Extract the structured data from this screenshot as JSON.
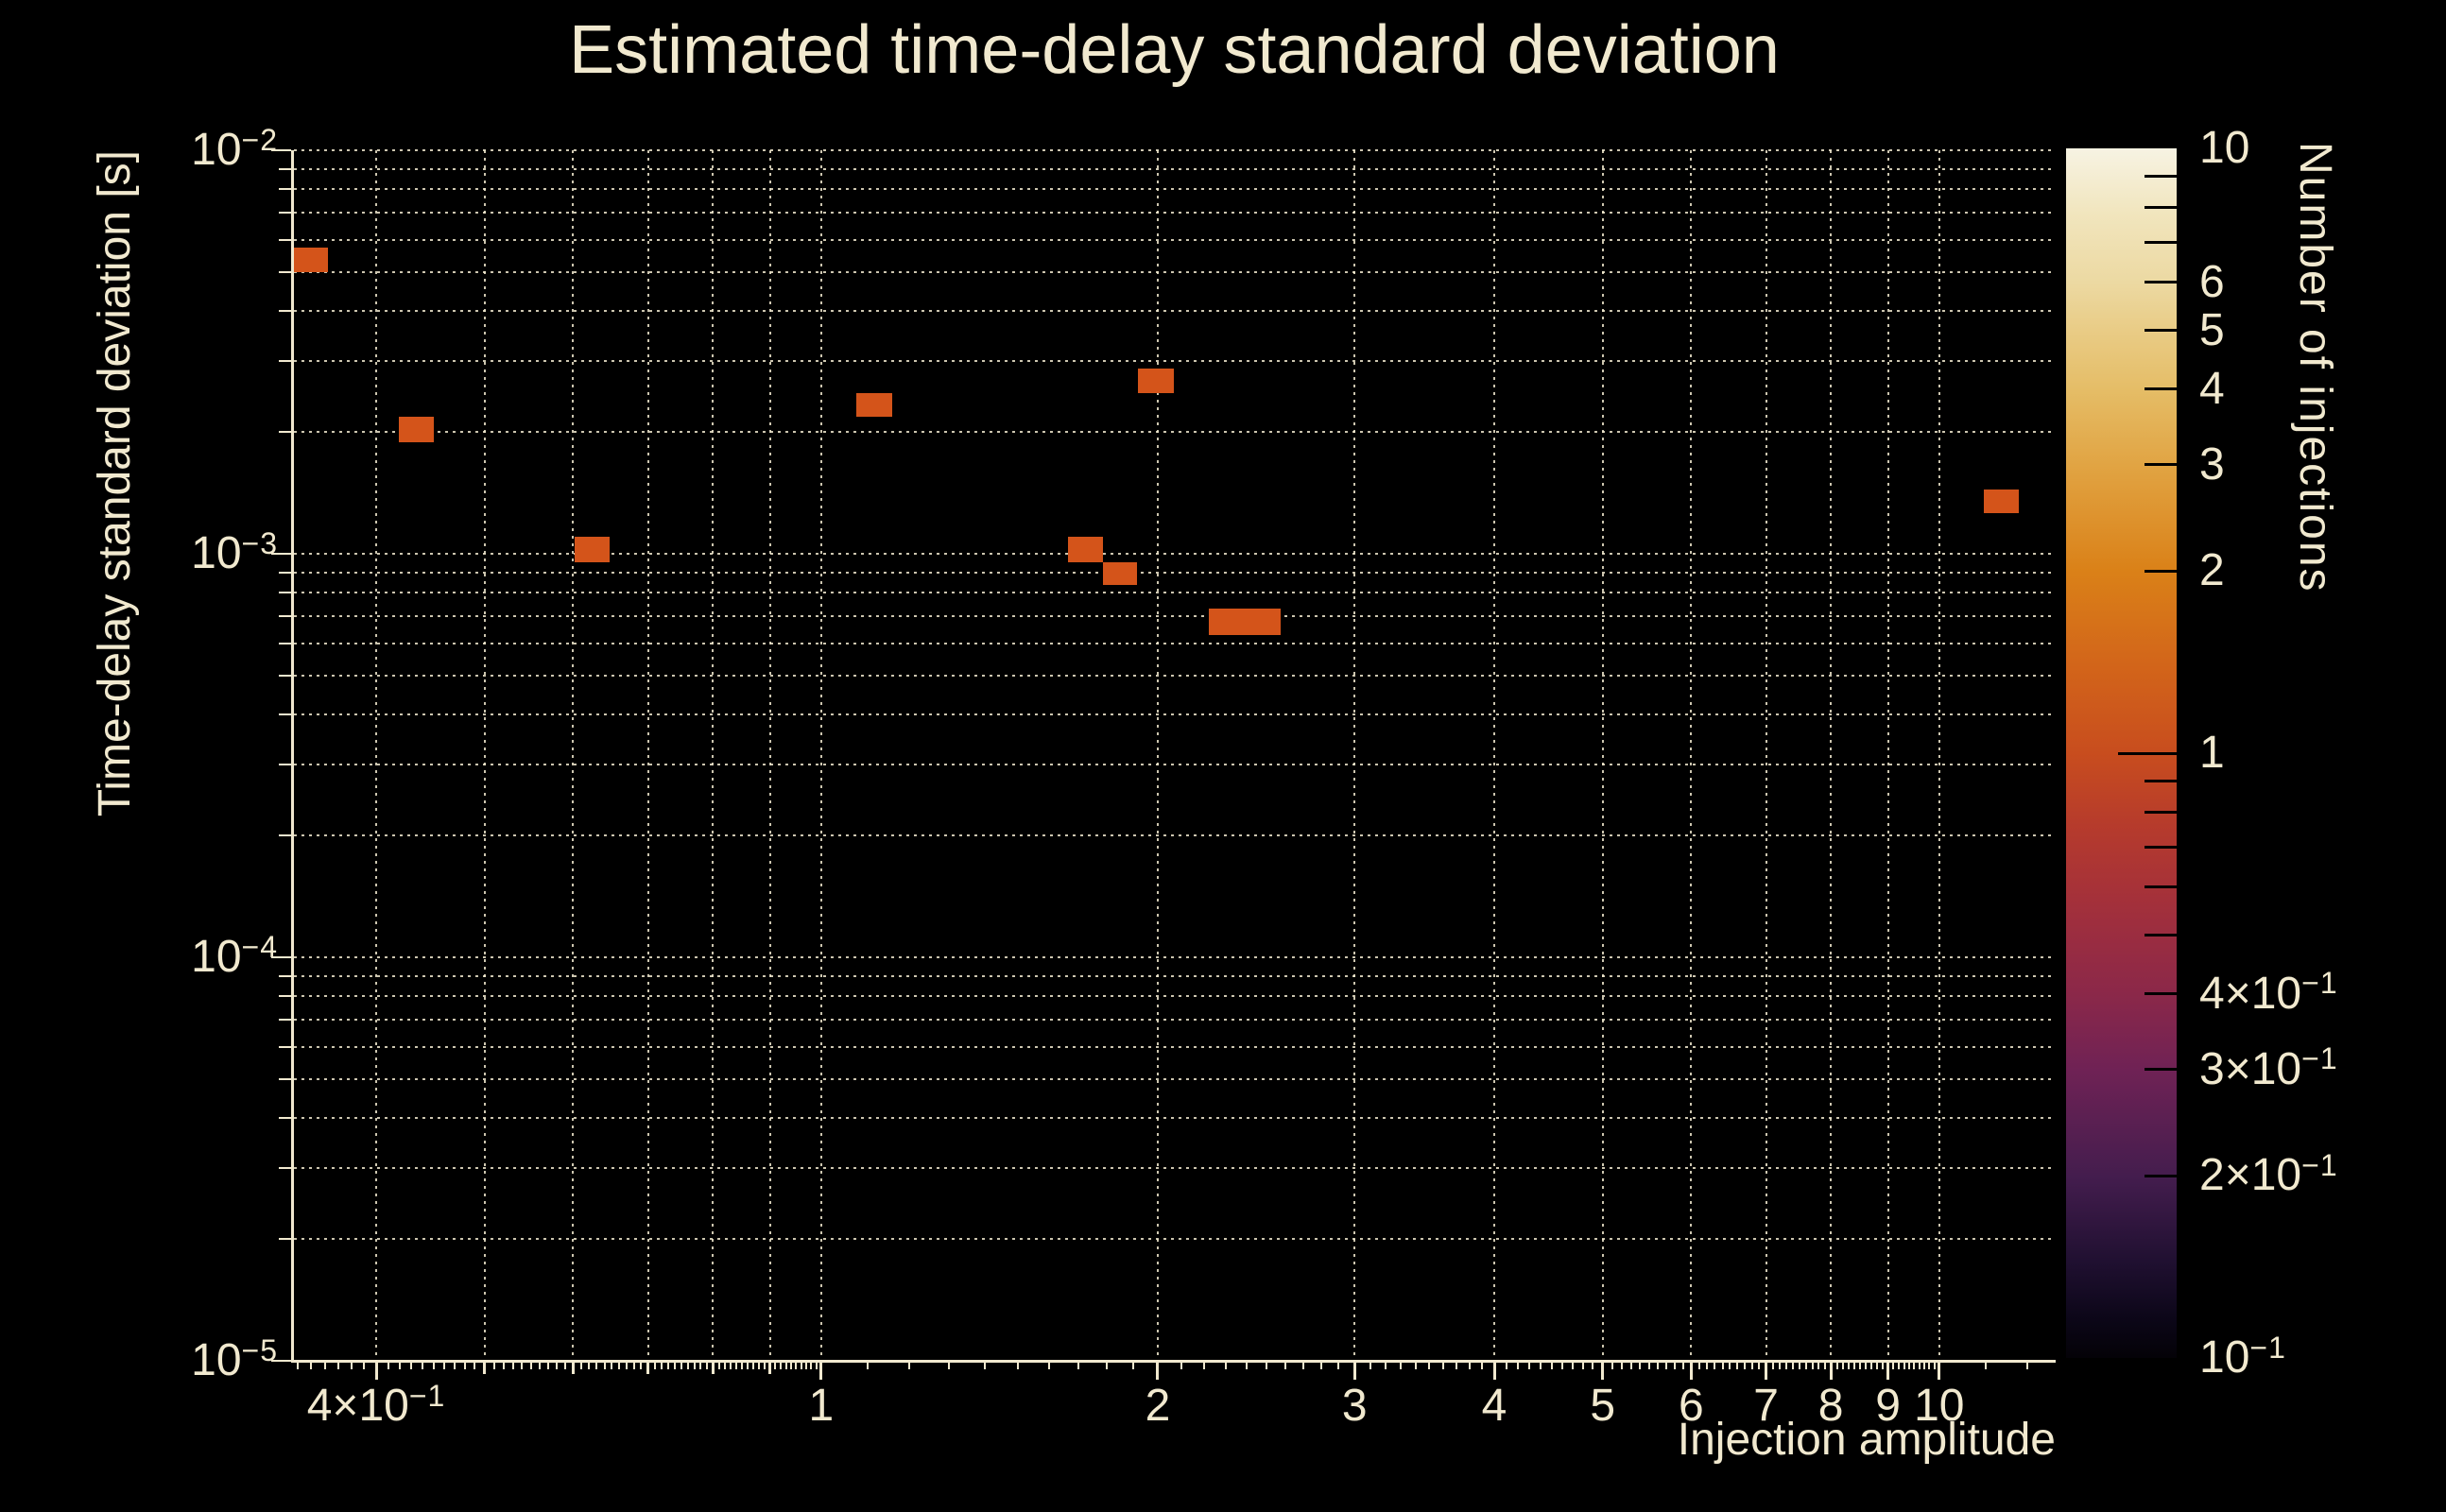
{
  "title": "Estimated time-delay standard deviation",
  "colors": {
    "background": "#000000",
    "text": "#f1e9cf",
    "grid": "rgba(241,233,207,0.85)",
    "axis": "#f1e9cf",
    "bin_fill": "#d4541a",
    "colorbar_tick": "#000000"
  },
  "axes": {
    "x": {
      "title": "Injection amplitude",
      "scale": "log",
      "range": [
        0.337,
        12.71
      ],
      "ticks": [
        {
          "v": 0.4,
          "text": "4×10",
          "exp": "−1"
        },
        {
          "v": 0.5
        },
        {
          "v": 0.6
        },
        {
          "v": 0.7
        },
        {
          "v": 0.8
        },
        {
          "v": 0.9
        },
        {
          "v": 1,
          "text": "1"
        },
        {
          "v": 2,
          "text": "2"
        },
        {
          "v": 3,
          "text": "3"
        },
        {
          "v": 4,
          "text": "4"
        },
        {
          "v": 5,
          "text": "5"
        },
        {
          "v": 6,
          "text": "6"
        },
        {
          "v": 7,
          "text": "7"
        },
        {
          "v": 8,
          "text": "8"
        },
        {
          "v": 9,
          "text": "9"
        },
        {
          "v": 10,
          "text": "10"
        }
      ]
    },
    "y": {
      "title": "Time-delay standard deviation [s]",
      "scale": "log",
      "range": [
        1e-05,
        0.01
      ],
      "ticks": [
        {
          "v": 0.01,
          "text": "10",
          "exp": "−2"
        },
        {
          "v": 0.001,
          "text": "10",
          "exp": "−3"
        },
        {
          "v": 0.0001,
          "text": "10",
          "exp": "−4"
        },
        {
          "v": 1e-05,
          "text": "10",
          "exp": "−5"
        }
      ]
    }
  },
  "colorbar": {
    "title": "Number of injections",
    "scale": "log",
    "range": [
      0.1,
      10
    ],
    "labeled_ticks": [
      {
        "v": 10,
        "text": "10",
        "edge": true
      },
      {
        "v": 6,
        "text": "6"
      },
      {
        "v": 5,
        "text": "5"
      },
      {
        "v": 4,
        "text": "4"
      },
      {
        "v": 3,
        "text": "3"
      },
      {
        "v": 2,
        "text": "2"
      },
      {
        "v": 1,
        "text": "1",
        "major": true
      },
      {
        "v": 0.4,
        "text": "4×10",
        "exp": "−1"
      },
      {
        "v": 0.3,
        "text": "3×10",
        "exp": "−1"
      },
      {
        "v": 0.2,
        "text": "2×10",
        "exp": "−1"
      },
      {
        "v": 0.1,
        "text": "10",
        "exp": "−1",
        "edge": true
      }
    ],
    "minor_ticks": [
      9,
      8,
      7,
      6,
      5,
      4,
      3,
      2,
      0.9,
      0.8,
      0.7,
      0.6,
      0.5,
      0.4,
      0.3,
      0.2
    ],
    "gradient": [
      [
        0.0,
        "#f7f3e3"
      ],
      [
        0.055,
        "#f1e5bd"
      ],
      [
        0.111,
        "#ecd9a2"
      ],
      [
        0.15,
        "#e9cc86"
      ],
      [
        0.199,
        "#e5bd67"
      ],
      [
        0.262,
        "#e1a443"
      ],
      [
        0.349,
        "#da8118"
      ],
      [
        0.43,
        "#d2641a"
      ],
      [
        0.5,
        "#c84d1e"
      ],
      [
        0.56,
        "#b63b2c"
      ],
      [
        0.611,
        "#a73238"
      ],
      [
        0.65,
        "#9b2d40"
      ],
      [
        0.699,
        "#8b2849"
      ],
      [
        0.762,
        "#6f2255"
      ],
      [
        0.85,
        "#441d4e"
      ],
      [
        0.92,
        "#201031"
      ],
      [
        0.97,
        "#0b0617"
      ],
      [
        1.0,
        "#040207"
      ]
    ]
  },
  "chart_data": {
    "type": "heatmap",
    "title": "Estimated time-delay standard deviation",
    "xlabel": "Injection amplitude",
    "ylabel": "Time-delay standard deviation [s]",
    "zlabel": "Number of injections",
    "x_scale": "log",
    "y_scale": "log",
    "z_scale": "log",
    "xlim": [
      0.337,
      12.71
    ],
    "ylim": [
      1e-05,
      0.01
    ],
    "zlim": [
      0.1,
      10
    ],
    "grid": true,
    "bins": [
      {
        "x": [
          0.337,
          0.362
        ],
        "y": [
          0.005,
          0.00574
        ],
        "count": 1
      },
      {
        "x": [
          0.419,
          0.45
        ],
        "y": [
          0.00189,
          0.00219
        ],
        "count": 1
      },
      {
        "x": [
          0.602,
          0.647
        ],
        "y": [
          0.000953,
          0.0011
        ],
        "count": 1
      },
      {
        "x": [
          1.075,
          1.157
        ],
        "y": [
          0.00219,
          0.0025
        ],
        "count": 1
      },
      {
        "x": [
          1.663,
          1.787
        ],
        "y": [
          0.000953,
          0.0011
        ],
        "count": 1
      },
      {
        "x": [
          1.787,
          1.916
        ],
        "y": [
          0.000837,
          0.000953
        ],
        "count": 1
      },
      {
        "x": [
          1.92,
          2.067
        ],
        "y": [
          0.0025,
          0.00288
        ],
        "count": 1
      },
      {
        "x": [
          2.223,
          2.575
        ],
        "y": [
          0.000629,
          0.000731
        ],
        "count": 1
      },
      {
        "x": [
          10.96,
          11.78
        ],
        "y": [
          0.00126,
          0.00144
        ],
        "count": 1
      }
    ]
  }
}
